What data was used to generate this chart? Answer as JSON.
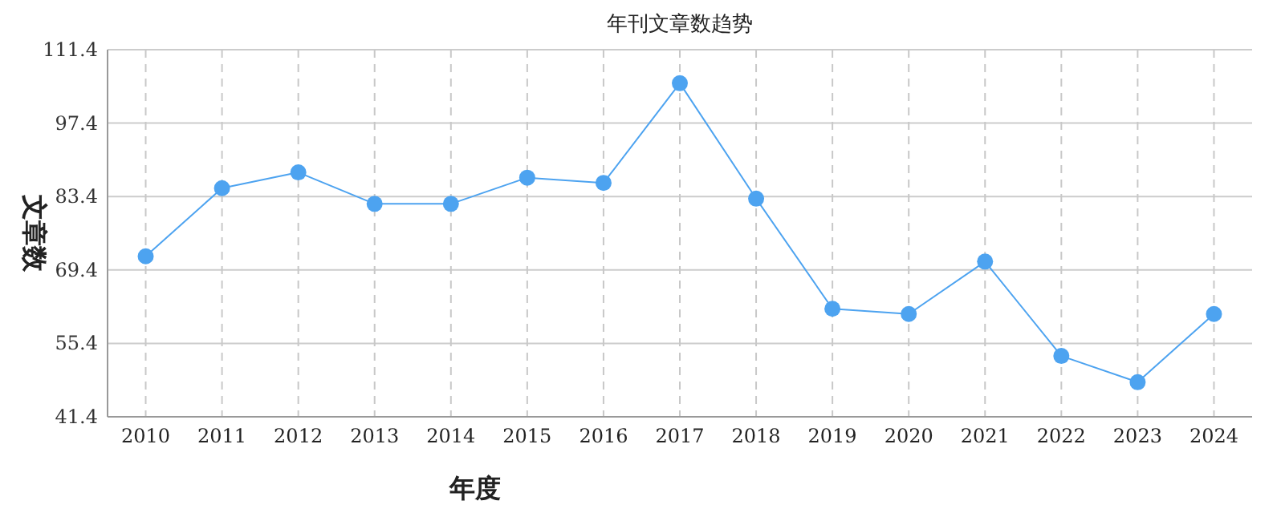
{
  "chart_data": {
    "type": "line",
    "title": "年刊文章数趋势",
    "xlabel": "年度",
    "ylabel": "文章数",
    "categories": [
      "2010",
      "2011",
      "2012",
      "2013",
      "2014",
      "2015",
      "2016",
      "2017",
      "2018",
      "2019",
      "2020",
      "2021",
      "2022",
      "2023",
      "2024"
    ],
    "series": [
      {
        "color": "#4da3f0",
        "values": [
          72,
          85,
          88,
          82,
          82,
          87,
          86,
          105,
          83,
          62,
          61,
          71,
          53,
          48,
          61
        ]
      }
    ],
    "ylim": [
      41.4,
      111.4
    ],
    "yticks": [
      41.4,
      55.4,
      69.4,
      83.4,
      97.4,
      111.4
    ],
    "grid": true,
    "marker": "circle"
  }
}
